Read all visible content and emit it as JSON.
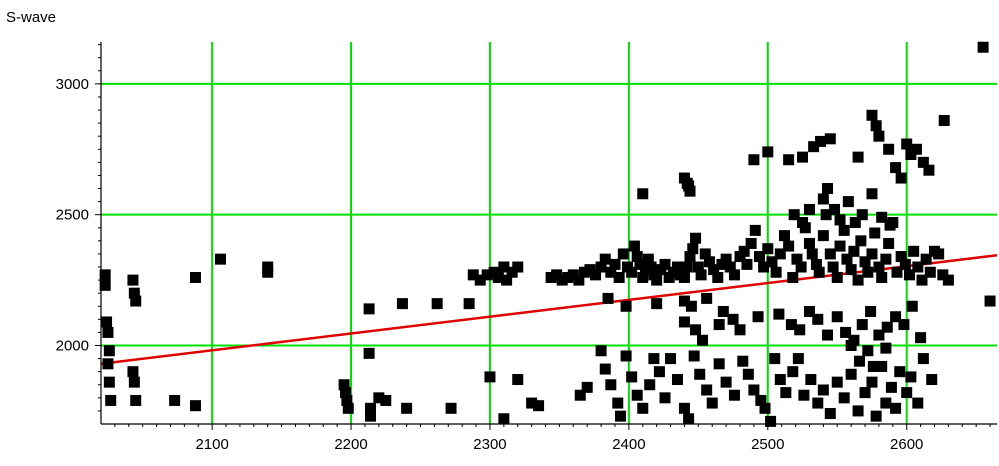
{
  "chart_data": {
    "type": "scatter",
    "title": "",
    "ylabel": "S-wave",
    "xlabel": "",
    "xlim": [
      2020,
      2665
    ],
    "ylim": [
      1700,
      3160
    ],
    "x_ticks": [
      2100,
      2200,
      2300,
      2400,
      2500,
      2600
    ],
    "y_ticks": [
      2000,
      2500,
      3000
    ],
    "x_tick_labels": [
      "2100",
      "2200",
      "2300",
      "2400",
      "2500",
      "2600"
    ],
    "y_tick_labels": [
      "2000",
      "2500",
      "3000"
    ],
    "grid": true,
    "colors": {
      "grid": "#00e000",
      "points": "#000000",
      "fit_line": "#e00000",
      "axis": "#000000"
    },
    "fit_line": {
      "x": [
        2020,
        2665
      ],
      "y": [
        1930,
        2345
      ]
    },
    "series": [
      {
        "points": [
          [
            2023,
            2270
          ],
          [
            2023,
            2230
          ],
          [
            2024,
            2090
          ],
          [
            2025,
            2050
          ],
          [
            2026,
            1980
          ],
          [
            2025,
            1930
          ],
          [
            2026,
            1860
          ],
          [
            2027,
            1790
          ],
          [
            2043,
            2250
          ],
          [
            2044,
            2200
          ],
          [
            2045,
            2170
          ],
          [
            2043,
            1900
          ],
          [
            2044,
            1860
          ],
          [
            2045,
            1790
          ],
          [
            2073,
            1790
          ],
          [
            2088,
            2260
          ],
          [
            2088,
            1770
          ],
          [
            2106,
            2330
          ],
          [
            2140,
            2300
          ],
          [
            2140,
            2280
          ],
          [
            2195,
            1850
          ],
          [
            2196,
            1820
          ],
          [
            2197,
            1790
          ],
          [
            2198,
            1760
          ],
          [
            2213,
            2140
          ],
          [
            2213,
            1970
          ],
          [
            2214,
            1760
          ],
          [
            2214,
            1730
          ],
          [
            2220,
            1800
          ],
          [
            2225,
            1790
          ],
          [
            2237,
            2160
          ],
          [
            2240,
            1760
          ],
          [
            2262,
            2160
          ],
          [
            2272,
            1760
          ],
          [
            2285,
            2160
          ],
          [
            2288,
            2270
          ],
          [
            2293,
            2250
          ],
          [
            2298,
            2270
          ],
          [
            2303,
            2280
          ],
          [
            2306,
            2260
          ],
          [
            2310,
            2300
          ],
          [
            2312,
            2250
          ],
          [
            2316,
            2280
          ],
          [
            2320,
            2300
          ],
          [
            2310,
            1720
          ],
          [
            2320,
            1870
          ],
          [
            2330,
            1780
          ],
          [
            2335,
            1770
          ],
          [
            2344,
            2260
          ],
          [
            2348,
            2270
          ],
          [
            2352,
            2250
          ],
          [
            2356,
            2260
          ],
          [
            2360,
            2270
          ],
          [
            2364,
            2250
          ],
          [
            2368,
            2280
          ],
          [
            2372,
            2290
          ],
          [
            2376,
            2270
          ],
          [
            2380,
            2300
          ],
          [
            2383,
            2330
          ],
          [
            2387,
            2280
          ],
          [
            2390,
            2310
          ],
          [
            2393,
            2260
          ],
          [
            2396,
            2350
          ],
          [
            2399,
            2300
          ],
          [
            2402,
            2280
          ],
          [
            2404,
            2380
          ],
          [
            2406,
            2340
          ],
          [
            2408,
            2310
          ],
          [
            2410,
            2260
          ],
          [
            2412,
            2290
          ],
          [
            2414,
            2330
          ],
          [
            2416,
            2300
          ],
          [
            2418,
            2270
          ],
          [
            2420,
            2250
          ],
          [
            2423,
            2290
          ],
          [
            2426,
            2310
          ],
          [
            2429,
            2260
          ],
          [
            2432,
            2280
          ],
          [
            2435,
            2300
          ],
          [
            2437,
            2270
          ],
          [
            2440,
            2260
          ],
          [
            2442,
            2300
          ],
          [
            2444,
            2340
          ],
          [
            2446,
            2370
          ],
          [
            2448,
            2410
          ],
          [
            2450,
            2300
          ],
          [
            2452,
            2270
          ],
          [
            2455,
            2350
          ],
          [
            2458,
            2320
          ],
          [
            2461,
            2290
          ],
          [
            2464,
            2260
          ],
          [
            2467,
            2310
          ],
          [
            2470,
            2330
          ],
          [
            2473,
            2300
          ],
          [
            2476,
            2270
          ],
          [
            2480,
            2340
          ],
          [
            2483,
            2360
          ],
          [
            2485,
            2310
          ],
          [
            2488,
            2390
          ],
          [
            2491,
            2440
          ],
          [
            2494,
            2340
          ],
          [
            2497,
            2300
          ],
          [
            2500,
            2370
          ],
          [
            2503,
            2320
          ],
          [
            2506,
            2280
          ],
          [
            2509,
            2350
          ],
          [
            2512,
            2420
          ],
          [
            2515,
            2380
          ],
          [
            2518,
            2260
          ],
          [
            2521,
            2330
          ],
          [
            2524,
            2300
          ],
          [
            2527,
            2450
          ],
          [
            2530,
            2390
          ],
          [
            2532,
            2350
          ],
          [
            2535,
            2310
          ],
          [
            2537,
            2280
          ],
          [
            2540,
            2420
          ],
          [
            2542,
            2500
          ],
          [
            2545,
            2350
          ],
          [
            2547,
            2300
          ],
          [
            2550,
            2260
          ],
          [
            2552,
            2380
          ],
          [
            2555,
            2440
          ],
          [
            2557,
            2330
          ],
          [
            2560,
            2290
          ],
          [
            2562,
            2360
          ],
          [
            2565,
            2250
          ],
          [
            2567,
            2400
          ],
          [
            2570,
            2320
          ],
          [
            2572,
            2280
          ],
          [
            2575,
            2350
          ],
          [
            2577,
            2430
          ],
          [
            2580,
            2300
          ],
          [
            2582,
            2260
          ],
          [
            2585,
            2330
          ],
          [
            2587,
            2390
          ],
          [
            2590,
            2470
          ],
          [
            2593,
            2280
          ],
          [
            2596,
            2340
          ],
          [
            2599,
            2310
          ],
          [
            2602,
            2270
          ],
          [
            2605,
            2360
          ],
          [
            2608,
            2300
          ],
          [
            2611,
            2250
          ],
          [
            2614,
            2330
          ],
          [
            2617,
            2280
          ],
          [
            2620,
            2360
          ],
          [
            2623,
            2350
          ],
          [
            2626,
            2270
          ],
          [
            2630,
            2250
          ],
          [
            2540,
            2560
          ],
          [
            2543,
            2600
          ],
          [
            2548,
            2520
          ],
          [
            2552,
            2480
          ],
          [
            2558,
            2550
          ],
          [
            2563,
            2470
          ],
          [
            2568,
            2500
          ],
          [
            2575,
            2580
          ],
          [
            2582,
            2490
          ],
          [
            2588,
            2460
          ],
          [
            2530,
            2520
          ],
          [
            2525,
            2470
          ],
          [
            2519,
            2500
          ],
          [
            2575,
            2880
          ],
          [
            2578,
            2840
          ],
          [
            2580,
            2800
          ],
          [
            2587,
            2750
          ],
          [
            2592,
            2680
          ],
          [
            2596,
            2640
          ],
          [
            2600,
            2770
          ],
          [
            2603,
            2730
          ],
          [
            2607,
            2750
          ],
          [
            2612,
            2700
          ],
          [
            2616,
            2670
          ],
          [
            2627,
            2860
          ],
          [
            2655,
            3140
          ],
          [
            2490,
            2710
          ],
          [
            2500,
            2740
          ],
          [
            2515,
            2710
          ],
          [
            2525,
            2720
          ],
          [
            2533,
            2760
          ],
          [
            2538,
            2780
          ],
          [
            2545,
            2790
          ],
          [
            2565,
            2720
          ],
          [
            2410,
            2580
          ],
          [
            2440,
            2640
          ],
          [
            2442,
            2620
          ],
          [
            2443,
            2610
          ],
          [
            2444,
            2590
          ],
          [
            2445,
            2150
          ],
          [
            2456,
            2180
          ],
          [
            2468,
            2130
          ],
          [
            2475,
            2100
          ],
          [
            2440,
            2170
          ],
          [
            2385,
            2180
          ],
          [
            2398,
            2150
          ],
          [
            2420,
            2160
          ],
          [
            2440,
            2090
          ],
          [
            2448,
            2060
          ],
          [
            2453,
            2020
          ],
          [
            2465,
            2080
          ],
          [
            2480,
            2060
          ],
          [
            2493,
            2110
          ],
          [
            2508,
            2120
          ],
          [
            2517,
            2080
          ],
          [
            2523,
            2060
          ],
          [
            2530,
            2130
          ],
          [
            2536,
            2100
          ],
          [
            2543,
            2040
          ],
          [
            2550,
            2110
          ],
          [
            2556,
            2050
          ],
          [
            2562,
            2020
          ],
          [
            2568,
            2080
          ],
          [
            2574,
            2130
          ],
          [
            2580,
            2040
          ],
          [
            2586,
            2070
          ],
          [
            2592,
            2110
          ],
          [
            2598,
            2080
          ],
          [
            2604,
            2150
          ],
          [
            2610,
            2030
          ],
          [
            2380,
            1980
          ],
          [
            2383,
            1910
          ],
          [
            2387,
            1850
          ],
          [
            2392,
            1780
          ],
          [
            2394,
            1730
          ],
          [
            2398,
            1960
          ],
          [
            2402,
            1880
          ],
          [
            2406,
            1810
          ],
          [
            2410,
            1760
          ],
          [
            2415,
            1850
          ],
          [
            2418,
            1950
          ],
          [
            2422,
            1900
          ],
          [
            2426,
            1800
          ],
          [
            2430,
            1950
          ],
          [
            2435,
            1870
          ],
          [
            2440,
            1760
          ],
          [
            2443,
            1720
          ],
          [
            2447,
            1960
          ],
          [
            2451,
            1890
          ],
          [
            2456,
            1830
          ],
          [
            2460,
            1780
          ],
          [
            2465,
            1930
          ],
          [
            2470,
            1860
          ],
          [
            2476,
            1810
          ],
          [
            2482,
            1940
          ],
          [
            2486,
            1890
          ],
          [
            2490,
            1830
          ],
          [
            2495,
            1790
          ],
          [
            2498,
            1760
          ],
          [
            2502,
            1710
          ],
          [
            2505,
            1950
          ],
          [
            2509,
            1870
          ],
          [
            2513,
            1820
          ],
          [
            2518,
            1900
          ],
          [
            2522,
            1950
          ],
          [
            2526,
            1810
          ],
          [
            2531,
            1870
          ],
          [
            2536,
            1780
          ],
          [
            2540,
            1830
          ],
          [
            2545,
            1740
          ],
          [
            2550,
            1860
          ],
          [
            2555,
            1800
          ],
          [
            2560,
            1890
          ],
          [
            2565,
            1750
          ],
          [
            2570,
            1820
          ],
          [
            2575,
            1860
          ],
          [
            2578,
            1730
          ],
          [
            2582,
            1920
          ],
          [
            2585,
            1780
          ],
          [
            2589,
            1840
          ],
          [
            2592,
            1760
          ],
          [
            2595,
            1900
          ],
          [
            2600,
            1820
          ],
          [
            2603,
            1880
          ],
          [
            2608,
            1780
          ],
          [
            2612,
            1950
          ],
          [
            2618,
            1870
          ],
          [
            2560,
            2000
          ],
          [
            2566,
            1940
          ],
          [
            2572,
            1980
          ],
          [
            2576,
            1920
          ],
          [
            2585,
            1990
          ],
          [
            2365,
            1810
          ],
          [
            2370,
            1840
          ],
          [
            2300,
            1880
          ],
          [
            2660,
            2170
          ]
        ]
      }
    ]
  }
}
